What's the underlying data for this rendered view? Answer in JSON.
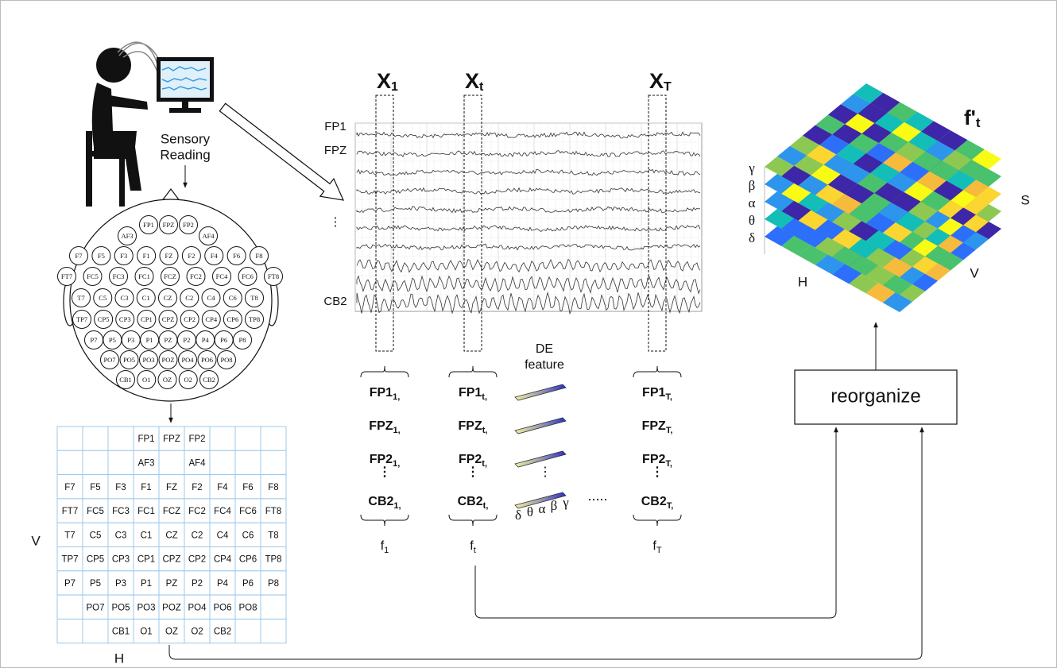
{
  "acquisition": {
    "caption": [
      "Sensory",
      "Reading"
    ]
  },
  "head": {
    "electrode_rows": [
      [
        "FP1",
        "FPZ",
        "FP2"
      ],
      [
        "AF3",
        "AF4"
      ],
      [
        "F7",
        "F5",
        "F3",
        "F1",
        "FZ",
        "F2",
        "F4",
        "F6",
        "F8"
      ],
      [
        "FT7",
        "FC5",
        "FC3",
        "FC1",
        "FCZ",
        "FC2",
        "FC4",
        "FC6",
        "FT8"
      ],
      [
        "T7",
        "C5",
        "C3",
        "C1",
        "CZ",
        "C2",
        "C4",
        "C6",
        "T8"
      ],
      [
        "TP7",
        "CP5",
        "CP3",
        "CP1",
        "CPZ",
        "CP2",
        "CP4",
        "CP6",
        "TP8"
      ],
      [
        "P7",
        "P5",
        "P3",
        "P1",
        "PZ",
        "P2",
        "P4",
        "P6",
        "P8"
      ],
      [
        "PO7",
        "PO5",
        "PO3",
        "POZ",
        "PO4",
        "PO6",
        "PO8"
      ],
      [
        "CB1",
        "O1",
        "OZ",
        "O2",
        "CB2"
      ]
    ]
  },
  "grid": {
    "rows": [
      [
        null,
        null,
        null,
        "FP1",
        "FPZ",
        "FP2",
        null,
        null,
        null
      ],
      [
        null,
        null,
        null,
        "AF3",
        null,
        "AF4",
        null,
        null,
        null
      ],
      [
        "F7",
        "F5",
        "F3",
        "F1",
        "FZ",
        "F2",
        "F4",
        "F6",
        "F8"
      ],
      [
        "FT7",
        "FC5",
        "FC3",
        "FC1",
        "FCZ",
        "FC2",
        "FC4",
        "FC6",
        "FT8"
      ],
      [
        "T7",
        "C5",
        "C3",
        "C1",
        "CZ",
        "C2",
        "C4",
        "C6",
        "T8"
      ],
      [
        "TP7",
        "CP5",
        "CP3",
        "CP1",
        "CPZ",
        "CP2",
        "CP4",
        "CP6",
        "TP8"
      ],
      [
        "P7",
        "P5",
        "P3",
        "P1",
        "PZ",
        "P2",
        "P4",
        "P6",
        "P8"
      ],
      [
        null,
        "PO7",
        "PO5",
        "PO3",
        "POZ",
        "PO4",
        "PO6",
        "PO8",
        null
      ],
      [
        null,
        null,
        "CB1",
        "O1",
        "OZ",
        "O2",
        "CB2",
        null,
        null
      ]
    ],
    "v_label": "V",
    "h_label": "H"
  },
  "eeg": {
    "windows": [
      {
        "symbol": "X",
        "sub": "1"
      },
      {
        "symbol": "X",
        "sub": "t"
      },
      {
        "symbol": "X",
        "sub": "T"
      }
    ],
    "channel_labels": [
      "FP1",
      "FPZ",
      "⋮",
      "CB2"
    ]
  },
  "features": {
    "columns": [
      {
        "entries": [
          {
            "text": "FP1",
            "sub": "1",
            "sep": ","
          },
          {
            "text": "FPZ",
            "sub": "1",
            "sep": ","
          },
          {
            "text": "FP2",
            "sub": "1",
            "sep": ","
          },
          {
            "text": "⋮"
          },
          {
            "text": "CB2",
            "sub": "1",
            "sep": ","
          }
        ],
        "output": {
          "text": "f",
          "sub": "1"
        }
      },
      {
        "entries": [
          {
            "text": "FP1",
            "sub": "t",
            "sep": ","
          },
          {
            "text": "FPZ",
            "sub": "t",
            "sep": ","
          },
          {
            "text": "FP2",
            "sub": "t",
            "sep": ","
          },
          {
            "text": "⋮"
          },
          {
            "text": "CB2",
            "sub": "t",
            "sep": ","
          }
        ],
        "output": {
          "text": "f",
          "sub": "t"
        }
      },
      {
        "entries": [
          {
            "text": "FP1",
            "sub": "T",
            "sep": ","
          },
          {
            "text": "FPZ",
            "sub": "T",
            "sep": ","
          },
          {
            "text": "FP2",
            "sub": "T",
            "sep": ","
          },
          {
            "text": "⋮"
          },
          {
            "text": "CB2",
            "sub": "T",
            "sep": ","
          }
        ],
        "output": {
          "text": "f",
          "sub": "T"
        }
      }
    ],
    "ellipsis": "....."
  },
  "de_feature": {
    "title": [
      "DE",
      "feature"
    ],
    "vdots": "⋮",
    "bands": [
      "δ",
      "θ",
      "α",
      "β",
      "γ"
    ]
  },
  "reorganize": {
    "label": "reorganize"
  },
  "tensor": {
    "title": "f'",
    "title_sub": "t",
    "bands": [
      "γ",
      "β",
      "α",
      "θ",
      "δ"
    ],
    "s_label": "S",
    "h_label": "H",
    "v_label": "V"
  }
}
